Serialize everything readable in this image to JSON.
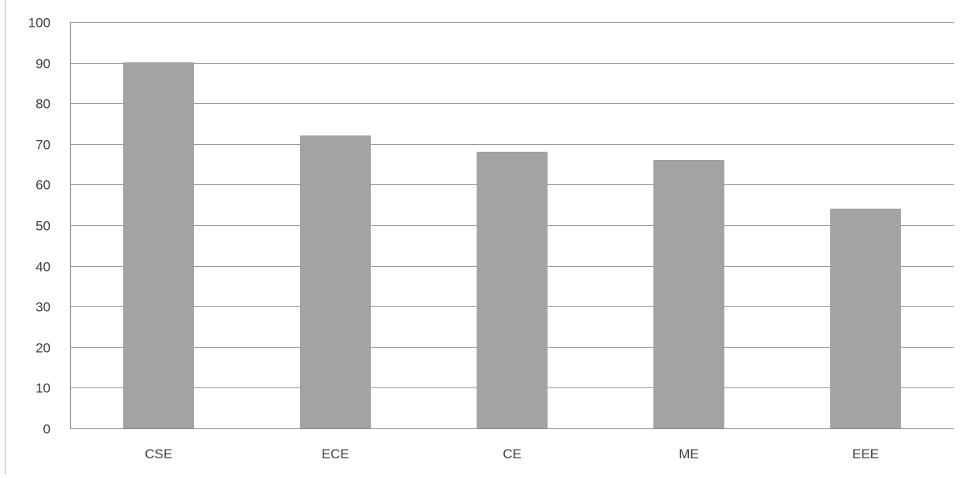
{
  "chart_data": {
    "type": "bar",
    "title": "",
    "xlabel": "",
    "ylabel": "",
    "categories": [
      "CSE",
      "ECE",
      "CE",
      "ME",
      "EEE"
    ],
    "values": [
      90,
      72,
      68,
      66,
      54
    ],
    "ylim": [
      0,
      100
    ],
    "yticks": [
      "0",
      "10",
      "20",
      "30",
      "40",
      "50",
      "60",
      "70",
      "80",
      "90",
      "100"
    ],
    "grid": true,
    "legend": "none",
    "colors": {
      "bar": "#a3a3a3",
      "bar_edge": "#8f8f8f",
      "grid": "#9a9a9a",
      "axis": "#8a8a8a",
      "text": "#404040"
    }
  }
}
